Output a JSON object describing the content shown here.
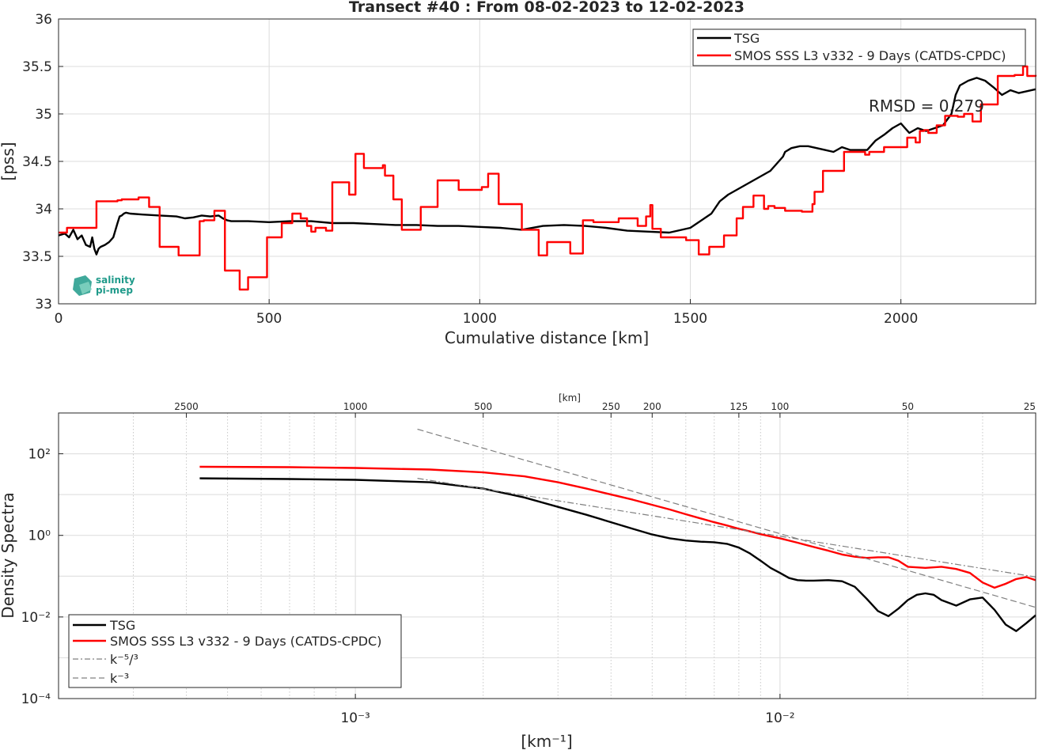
{
  "figure": {
    "logo_text_1": "salinity",
    "logo_text_2": "pi-mep",
    "colors": {
      "tsg": "#000000",
      "smos": "#ff0000",
      "reference": "#808080",
      "logo": "#1f9a8a"
    }
  },
  "chart_data": [
    {
      "type": "line",
      "title": "Transect #40 : From 08-02-2023 to 12-02-2023",
      "xlabel": "Cumulative distance [km]",
      "ylabel": "[pss]",
      "xlim": [
        0,
        2320
      ],
      "ylim": [
        33,
        36
      ],
      "xticks": [
        0,
        500,
        1000,
        1500,
        2000
      ],
      "xtick_labels": [
        "0",
        "500",
        "1000",
        "1500",
        "2000"
      ],
      "yticks": [
        33,
        33.5,
        34,
        34.5,
        35,
        35.5,
        36
      ],
      "ytick_labels": [
        "33",
        "33.5",
        "34",
        "34.5",
        "35",
        "35.5",
        "36"
      ],
      "grid": true,
      "legend_position": "top-right",
      "annotation": "RMSD = 0.279",
      "series": [
        {
          "name": "TSG",
          "color": "#000000",
          "x": [
            0,
            15,
            25,
            35,
            45,
            55,
            65,
            75,
            80,
            85,
            90,
            95,
            100,
            110,
            120,
            130,
            140,
            145,
            150,
            155,
            160,
            170,
            200,
            240,
            280,
            300,
            320,
            340,
            360,
            380,
            390,
            400,
            410,
            420,
            450,
            500,
            550,
            600,
            650,
            700,
            750,
            800,
            850,
            900,
            950,
            1000,
            1050,
            1100,
            1150,
            1200,
            1250,
            1300,
            1350,
            1400,
            1450,
            1500,
            1550,
            1570,
            1590,
            1610,
            1630,
            1650,
            1670,
            1690,
            1710,
            1720,
            1725,
            1740,
            1760,
            1780,
            1800,
            1820,
            1840,
            1860,
            1880,
            1900,
            1920,
            1940,
            1960,
            1980,
            2000,
            2020,
            2040,
            2060,
            2080,
            2100,
            2120,
            2125,
            2130,
            2140,
            2160,
            2180,
            2200,
            2220,
            2240,
            2260,
            2280,
            2300,
            2320
          ],
          "y": [
            33.72,
            33.74,
            33.7,
            33.78,
            33.68,
            33.72,
            33.62,
            33.6,
            33.7,
            33.58,
            33.52,
            33.58,
            33.6,
            33.62,
            33.65,
            33.7,
            33.85,
            33.92,
            33.93,
            33.95,
            33.96,
            33.95,
            33.94,
            33.93,
            33.92,
            33.9,
            33.91,
            33.93,
            33.92,
            33.93,
            33.9,
            33.88,
            33.87,
            33.87,
            33.87,
            33.86,
            33.87,
            33.87,
            33.85,
            33.85,
            33.84,
            33.83,
            33.83,
            33.82,
            33.82,
            33.81,
            33.8,
            33.78,
            33.82,
            33.83,
            33.82,
            33.8,
            33.77,
            33.76,
            33.75,
            33.8,
            33.95,
            34.08,
            34.15,
            34.2,
            34.25,
            34.3,
            34.35,
            34.4,
            34.5,
            34.55,
            34.6,
            34.64,
            34.66,
            34.66,
            34.64,
            34.62,
            34.6,
            34.65,
            34.62,
            34.62,
            34.62,
            34.72,
            34.78,
            34.85,
            34.9,
            34.8,
            34.85,
            34.82,
            34.85,
            34.88,
            35.0,
            35.1,
            35.2,
            35.3,
            35.35,
            35.38,
            35.35,
            35.28,
            35.2,
            35.25,
            35.22,
            35.24,
            35.26
          ]
        },
        {
          "name": "SMOS SSS L3 v332 - 9 Days (CATDS-CPDC)",
          "color": "#ff0000",
          "x": [
            0,
            20,
            90,
            140,
            150,
            190,
            215,
            240,
            285,
            335,
            345,
            370,
            395,
            430,
            450,
            495,
            530,
            555,
            575,
            590,
            600,
            610,
            635,
            650,
            690,
            705,
            725,
            770,
            775,
            795,
            815,
            860,
            900,
            950,
            1005,
            1020,
            1045,
            1100,
            1120,
            1140,
            1160,
            1215,
            1245,
            1270,
            1330,
            1375,
            1395,
            1405,
            1410,
            1430,
            1490,
            1520,
            1545,
            1580,
            1610,
            1625,
            1650,
            1675,
            1685,
            1700,
            1725,
            1750,
            1765,
            1790,
            1795,
            1815,
            1865,
            1915,
            1925,
            1960,
            2015,
            2035,
            2045,
            2055,
            2065,
            2075,
            2085,
            2105,
            2125,
            2135,
            2150,
            2170,
            2190,
            2230,
            2250,
            2270,
            2290,
            2300,
            2310,
            2320
          ],
          "y": [
            33.75,
            33.8,
            34.08,
            34.09,
            34.1,
            34.12,
            34.02,
            33.6,
            33.51,
            33.87,
            33.88,
            33.98,
            33.35,
            33.15,
            33.28,
            33.7,
            33.85,
            33.95,
            33.9,
            33.82,
            33.76,
            33.8,
            33.77,
            34.28,
            34.15,
            34.58,
            34.43,
            34.46,
            34.35,
            34.1,
            33.78,
            34.02,
            34.3,
            34.2,
            34.23,
            34.37,
            34.05,
            33.78,
            33.78,
            33.51,
            33.65,
            33.53,
            33.88,
            33.86,
            33.9,
            33.82,
            33.92,
            34.04,
            33.79,
            33.7,
            33.67,
            33.52,
            33.6,
            33.72,
            33.9,
            34.02,
            34.14,
            34.0,
            34.03,
            34.01,
            33.98,
            33.98,
            33.97,
            34.05,
            34.18,
            34.4,
            34.6,
            34.57,
            34.6,
            34.65,
            34.75,
            34.7,
            34.82,
            34.83,
            34.8,
            34.8,
            34.88,
            34.98,
            34.98,
            34.97,
            35.0,
            34.92,
            35.1,
            35.4,
            35.4,
            35.41,
            35.5,
            35.4,
            35.4,
            35.41
          ]
        }
      ]
    },
    {
      "type": "line",
      "title": "",
      "xlabel": "[km⁻¹]",
      "top_xlabel": "[km]",
      "ylabel": "Density Spectra",
      "x_scale": "log",
      "y_scale": "log",
      "xlim": [
        0.0002,
        0.04
      ],
      "ylim": [
        0.0001,
        1000
      ],
      "xtick_labels": [
        "10⁻³",
        "10⁻²"
      ],
      "ytick_labels": [
        "10²",
        "10⁰",
        "10⁻²",
        "10⁻⁴"
      ],
      "top_xtick_labels": [
        "2500",
        "1000",
        "500",
        "250",
        "200",
        "125",
        "100",
        "50",
        "25"
      ],
      "top_xticks_km": [
        2500,
        1000,
        500,
        250,
        200,
        125,
        100,
        50,
        25
      ],
      "grid": true,
      "legend_position": "bottom-left",
      "series": [
        {
          "name": "TSG",
          "color": "#000000",
          "x": [
            0.00043,
            0.0007,
            0.001,
            0.0015,
            0.002,
            0.0025,
            0.003,
            0.0035,
            0.004,
            0.0045,
            0.005,
            0.0055,
            0.006,
            0.0065,
            0.007,
            0.0075,
            0.008,
            0.0085,
            0.009,
            0.0095,
            0.01,
            0.0105,
            0.011,
            0.0115,
            0.012,
            0.013,
            0.014,
            0.015,
            0.016,
            0.017,
            0.018,
            0.019,
            0.02,
            0.021,
            0.022,
            0.023,
            0.024,
            0.026,
            0.028,
            0.03,
            0.032,
            0.034,
            0.036,
            0.038,
            0.04
          ],
          "y": [
            25,
            24,
            23,
            20,
            14,
            8.5,
            5,
            3.2,
            2.1,
            1.45,
            1.05,
            0.85,
            0.75,
            0.7,
            0.68,
            0.62,
            0.5,
            0.36,
            0.24,
            0.16,
            0.12,
            0.09,
            0.08,
            0.078,
            0.078,
            0.08,
            0.075,
            0.055,
            0.028,
            0.014,
            0.0105,
            0.016,
            0.026,
            0.035,
            0.038,
            0.035,
            0.026,
            0.019,
            0.027,
            0.03,
            0.015,
            0.0065,
            0.0045,
            0.007,
            0.011
          ]
        },
        {
          "name": "SMOS SSS L3 v332 - 9 Days (CATDS-CPDC)",
          "color": "#ff0000",
          "x": [
            0.00043,
            0.0007,
            0.001,
            0.0015,
            0.002,
            0.0025,
            0.003,
            0.0035,
            0.004,
            0.0045,
            0.005,
            0.0055,
            0.006,
            0.0065,
            0.007,
            0.0075,
            0.008,
            0.0085,
            0.009,
            0.0095,
            0.01,
            0.011,
            0.012,
            0.013,
            0.014,
            0.015,
            0.016,
            0.017,
            0.018,
            0.019,
            0.02,
            0.022,
            0.024,
            0.026,
            0.028,
            0.03,
            0.032,
            0.034,
            0.036,
            0.038,
            0.04
          ],
          "y": [
            48,
            47,
            45,
            41,
            35,
            28,
            20,
            14,
            10,
            7.5,
            5.6,
            4.3,
            3.3,
            2.6,
            2.1,
            1.75,
            1.45,
            1.25,
            1.07,
            0.95,
            0.85,
            0.66,
            0.52,
            0.42,
            0.34,
            0.3,
            0.28,
            0.29,
            0.29,
            0.24,
            0.17,
            0.16,
            0.17,
            0.15,
            0.12,
            0.07,
            0.052,
            0.065,
            0.085,
            0.095,
            0.08
          ]
        },
        {
          "name": "k⁻⁵/³",
          "color": "#808080",
          "dash": "dashdot",
          "x": [
            0.0014,
            0.04
          ],
          "y": [
            25,
            0.0957
          ]
        },
        {
          "name": "k⁻³",
          "color": "#808080",
          "dash": "dashed",
          "x": [
            0.0014,
            0.04
          ],
          "y": [
            400,
            0.0172
          ]
        }
      ]
    }
  ]
}
